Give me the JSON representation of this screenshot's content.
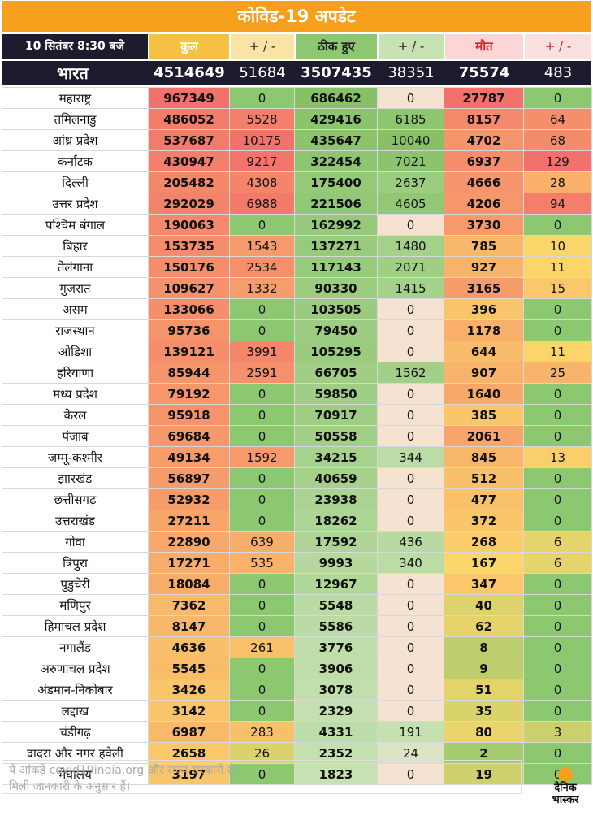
{
  "title": "कोविड-19 अपडेट",
  "header": {
    "date": "10 सितंबर  8:30 बजे",
    "total": "कुल",
    "d1": "+ / -",
    "recovered": "ठीक हुए",
    "d2": "+ / -",
    "deaths": "मौत",
    "d3": "+ / -"
  },
  "india": {
    "name": "भारत",
    "total": "4514649",
    "d1": "51684",
    "recovered": "3507435",
    "d2": "38351",
    "deaths": "75574",
    "d3": "483"
  },
  "rows": [
    [
      "महाराष्ट्र",
      "967349",
      "0",
      "686462",
      "0",
      "27787",
      "0"
    ],
    [
      "तमिलनाडु",
      "486052",
      "5528",
      "429416",
      "6185",
      "8157",
      "64"
    ],
    [
      "आंध्र प्रदेश",
      "537687",
      "10175",
      "435647",
      "10040",
      "4702",
      "68"
    ],
    [
      "कर्नाटक",
      "430947",
      "9217",
      "322454",
      "7021",
      "6937",
      "129"
    ],
    [
      "दिल्ली",
      "205482",
      "4308",
      "175400",
      "2637",
      "4666",
      "28"
    ],
    [
      "उत्तर प्रदेश",
      "292029",
      "6988",
      "221506",
      "4605",
      "4206",
      "94"
    ],
    [
      "पश्चिम बंगाल",
      "190063",
      "0",
      "162992",
      "0",
      "3730",
      "0"
    ],
    [
      "बिहार",
      "153735",
      "1543",
      "137271",
      "1480",
      "785",
      "10"
    ],
    [
      "तेलंगाना",
      "150176",
      "2534",
      "117143",
      "2071",
      "927",
      "11"
    ],
    [
      "गुजरात",
      "109627",
      "1332",
      "90330",
      "1415",
      "3165",
      "15"
    ],
    [
      "असम",
      "133066",
      "0",
      "103505",
      "0",
      "396",
      "0"
    ],
    [
      "राजस्थान",
      "95736",
      "0",
      "79450",
      "0",
      "1178",
      "0"
    ],
    [
      "ओडिशा",
      "139121",
      "3991",
      "105295",
      "0",
      "644",
      "11"
    ],
    [
      "हरियाणा",
      "85944",
      "2591",
      "66705",
      "1562",
      "907",
      "25"
    ],
    [
      "मध्य प्रदेश",
      "79192",
      "0",
      "59850",
      "0",
      "1640",
      "0"
    ],
    [
      "केरल",
      "95918",
      "0",
      "70917",
      "0",
      "385",
      "0"
    ],
    [
      "पंजाब",
      "69684",
      "0",
      "50558",
      "0",
      "2061",
      "0"
    ],
    [
      "जम्मू-कश्मीर",
      "49134",
      "1592",
      "34215",
      "344",
      "845",
      "13"
    ],
    [
      "झारखंड",
      "56897",
      "0",
      "40659",
      "0",
      "512",
      "0"
    ],
    [
      "छत्तीसगढ़",
      "52932",
      "0",
      "23938",
      "0",
      "477",
      "0"
    ],
    [
      "उत्तराखंड",
      "27211",
      "0",
      "18262",
      "0",
      "372",
      "0"
    ],
    [
      "गोवा",
      "22890",
      "639",
      "17592",
      "436",
      "268",
      "6"
    ],
    [
      "त्रिपुरा",
      "17271",
      "535",
      "9993",
      "340",
      "167",
      "6"
    ],
    [
      "पुडुचेरी",
      "18084",
      "0",
      "12967",
      "0",
      "347",
      "0"
    ],
    [
      "मणिपुर",
      "7362",
      "0",
      "5548",
      "0",
      "40",
      "0"
    ],
    [
      "हिमाचल प्रदेश",
      "8147",
      "0",
      "5586",
      "0",
      "62",
      "0"
    ],
    [
      "नगालैंड",
      "4636",
      "261",
      "3776",
      "0",
      "8",
      "0"
    ],
    [
      "अरुणाचल प्रदेश",
      "5545",
      "0",
      "3906",
      "0",
      "9",
      "0"
    ],
    [
      "अंडमान-निकोबार",
      "3426",
      "0",
      "3078",
      "0",
      "51",
      "0"
    ],
    [
      "लद्दाख",
      "3142",
      "0",
      "2329",
      "0",
      "35",
      "0"
    ],
    [
      "चंडीगढ़",
      "6987",
      "283",
      "4331",
      "191",
      "80",
      "3"
    ],
    [
      "दादरा और नगर हवेली",
      "2658",
      "26",
      "2352",
      "24",
      "2",
      "0"
    ],
    [
      "मेघालय",
      "3197",
      "0",
      "1823",
      "0",
      "19",
      "0"
    ]
  ],
  "footer": {
    "line1": "ये आंकड़े covid19india.org और राज्य सरकारों से",
    "line2": "मिली जानकारी के अनुसार हैं।"
  },
  "logo": {
    "line1": "दैनिक",
    "line2": "भास्कर"
  },
  "colors": {
    "title_bg": "#f7a01d",
    "india_bg": "#1d1b2e",
    "header_total": "#f5a623",
    "header_recovered": "#86c166",
    "header_deaths": "#d9222a",
    "high": "#f2726b",
    "mid": "#fbd66a",
    "low": "#8cc86f"
  }
}
